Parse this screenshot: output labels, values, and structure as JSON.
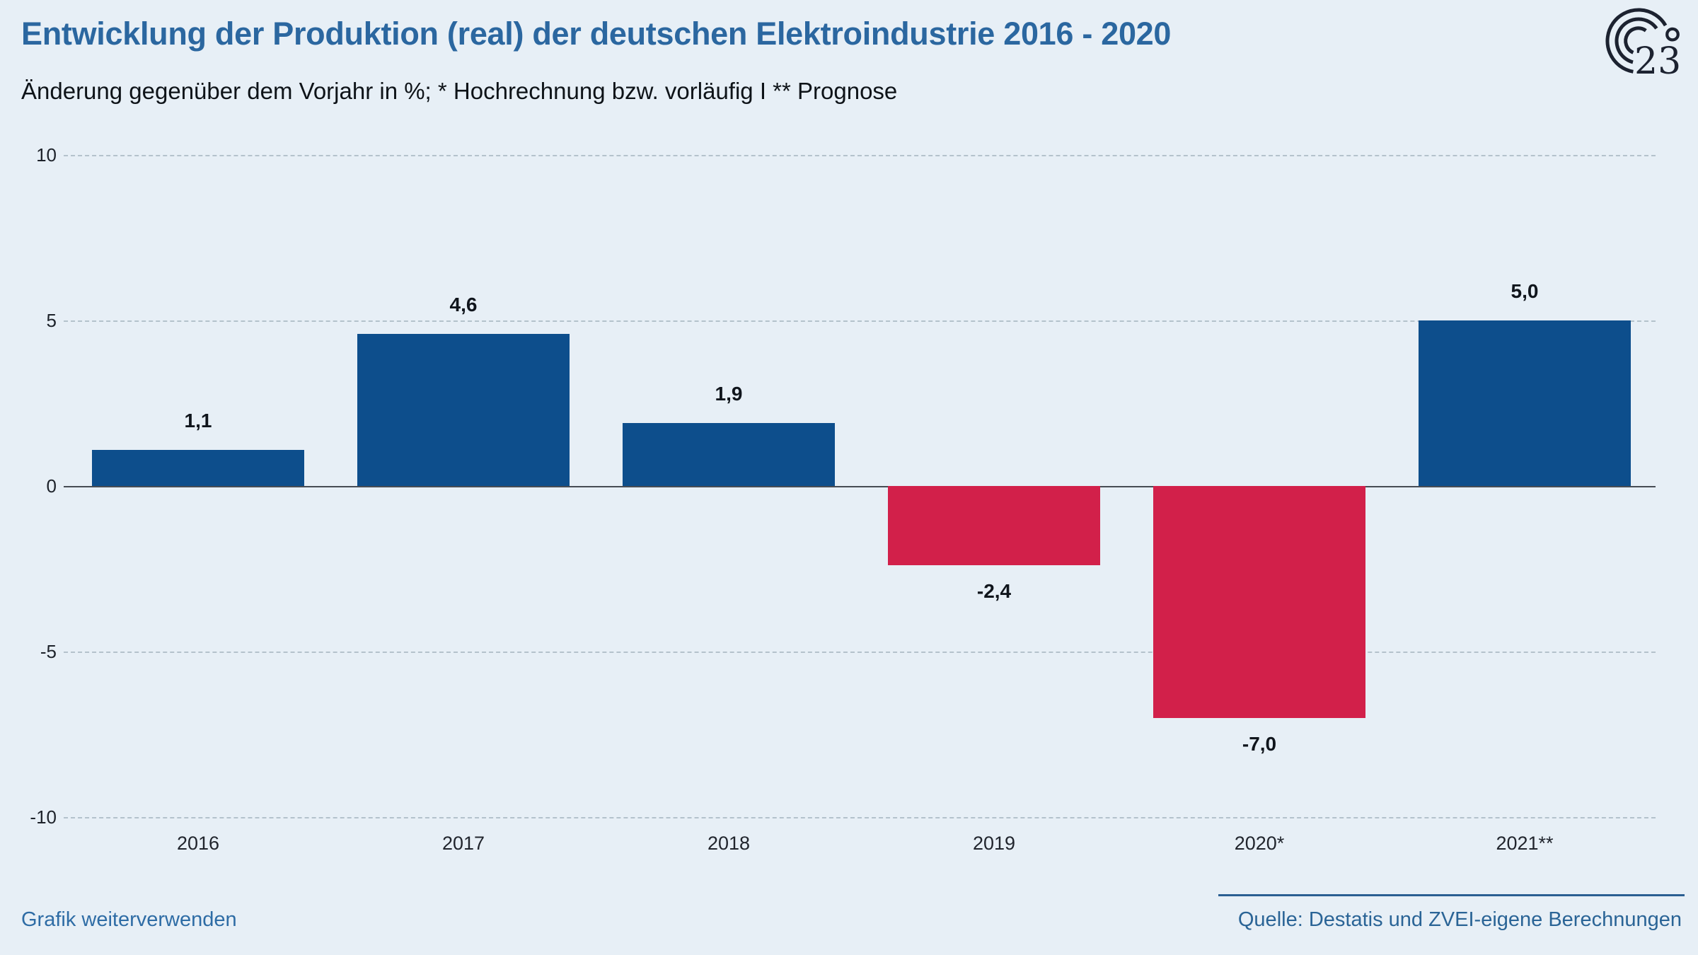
{
  "header": {
    "title": "Entwicklung der Produktion (real) der deutschen Elektroindustrie 2016 - 2020",
    "subtitle": "Änderung gegenüber dem Vorjahr in %; * Hochrechnung bzw. vorläufig I ** Prognose",
    "logo": {
      "text": "23",
      "degree": "°"
    }
  },
  "footer": {
    "reuse_label": "Grafik weiterverwenden",
    "source": "Quelle: Destatis und ZVEI-eigene Berechnungen"
  },
  "chart_data": {
    "type": "bar",
    "title": "Entwicklung der Produktion (real) der deutschen Elektroindustrie 2016 - 2020",
    "subtitle": "Änderung gegenüber dem Vorjahr in %; * Hochrechnung bzw. vorläufig I ** Prognose",
    "categories": [
      "2016",
      "2017",
      "2018",
      "2019",
      "2020*",
      "2021**"
    ],
    "values": [
      1.1,
      4.6,
      1.9,
      -2.4,
      -7.0,
      5.0
    ],
    "value_labels": [
      "1,1",
      "4,6",
      "1,9",
      "-2,4",
      "-7,0",
      "5,0"
    ],
    "xlabel": "",
    "ylabel": "",
    "ylim": [
      -10,
      10
    ],
    "yticks": [
      10,
      5,
      0,
      -5,
      -10
    ],
    "ytick_labels": [
      "10",
      "5",
      "0",
      "-5",
      "-10"
    ],
    "grid": "horizontal-dashed",
    "legend": "none",
    "colors": {
      "positive": "#0d4e8c",
      "negative": "#d2204a",
      "background": "#e7eff6",
      "title": "#2b67a0",
      "link": "#2e6ca5",
      "logo": "#1c2230"
    }
  }
}
